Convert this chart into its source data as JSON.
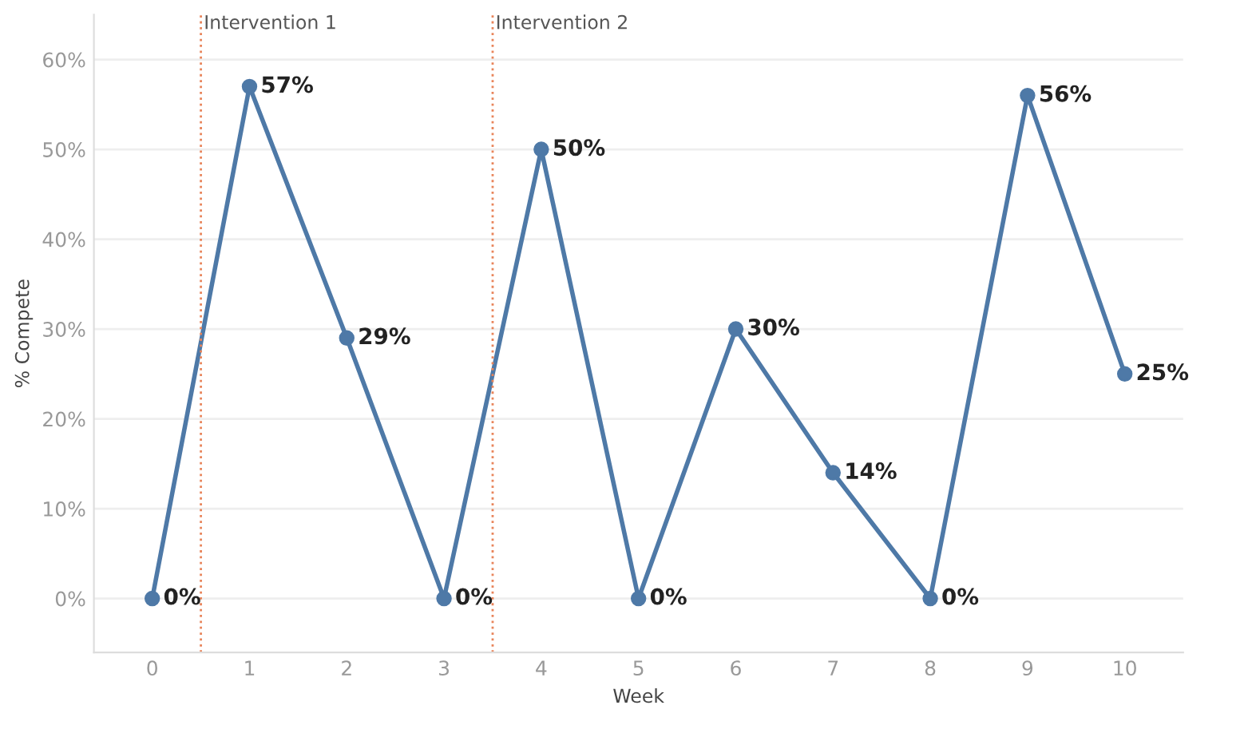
{
  "chart_data": {
    "type": "line",
    "xlabel": "Week",
    "ylabel": "% Compete",
    "x": [
      0,
      1,
      2,
      3,
      4,
      5,
      6,
      7,
      8,
      9,
      10
    ],
    "series": [
      {
        "color": "#4e79a7",
        "values": [
          0,
          57,
          29,
          0,
          50,
          0,
          30,
          14,
          0,
          56,
          25
        ],
        "value_labels": [
          "0%",
          "57%",
          "29%",
          "0%",
          "50%",
          "0%",
          "30%",
          "14%",
          "0%",
          "56%",
          "25%"
        ]
      }
    ],
    "xlim": [
      -0.6,
      10.6
    ],
    "xticks": [
      0,
      1,
      2,
      3,
      4,
      5,
      6,
      7,
      8,
      9,
      10
    ],
    "ylim": [
      -6,
      65
    ],
    "yticks": [
      {
        "value": 0,
        "label": "0%"
      },
      {
        "value": 10,
        "label": "10%"
      },
      {
        "value": 20,
        "label": "20%"
      },
      {
        "value": 30,
        "label": "30%"
      },
      {
        "value": 40,
        "label": "40%"
      },
      {
        "value": 50,
        "label": "50%"
      },
      {
        "value": 60,
        "label": "60%"
      }
    ],
    "ref_lines": [
      {
        "axis": "x",
        "value": 0.5,
        "label": "Intervention 1",
        "color": "#e8845a",
        "line_style": "dotted"
      },
      {
        "axis": "x",
        "value": 3.5,
        "label": "Intervention 2",
        "color": "#e8845a",
        "line_style": "dotted"
      }
    ],
    "grid": "y",
    "legend": false,
    "marker": "circle",
    "line_style": "solid"
  }
}
